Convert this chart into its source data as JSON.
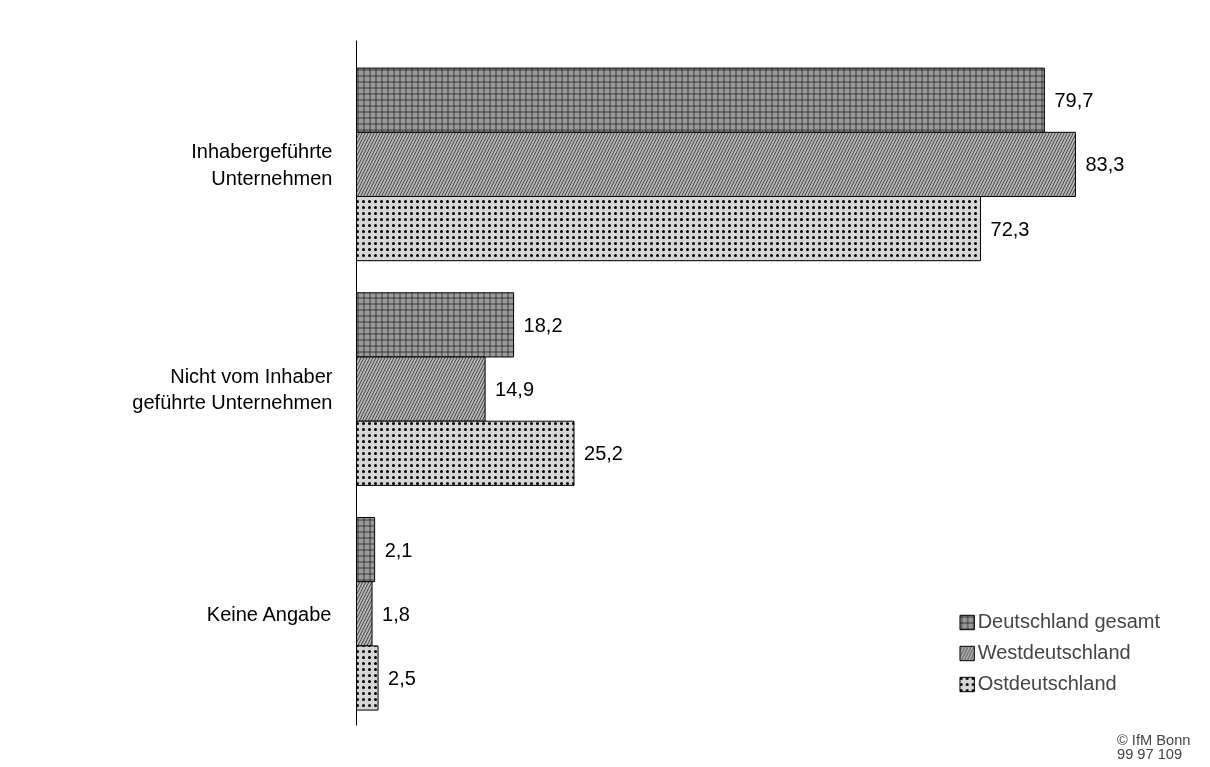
{
  "chart_data": {
    "type": "bar",
    "orientation": "horizontal",
    "legend": "bottom right",
    "grid": false,
    "categories": [
      "Inhabergeführte\nUnternehmen",
      "Nicht vom Inhaber\ngeführte Unternehmen",
      "Keine Angabe"
    ],
    "series": [
      {
        "name": "Deutschland gesamt",
        "color": "#9a9a9a",
        "values": [
          79.7,
          18.2,
          2.1
        ],
        "value_labels": [
          "79,7",
          "18,2",
          "2,1"
        ]
      },
      {
        "name": "Westdeutschland",
        "color": "#b4b4b4",
        "values": [
          83.3,
          14.9,
          1.8
        ],
        "value_labels": [
          "83,3",
          "14,9",
          "1,8"
        ]
      },
      {
        "name": "Ostdeutschland",
        "color": "#d6d6d6",
        "values": [
          72.3,
          25.2,
          2.5
        ],
        "value_labels": [
          "72,3",
          "25,2",
          "2,5"
        ]
      }
    ],
    "annotations": [
      "© IfM Bonn\n99 97 109"
    ]
  }
}
